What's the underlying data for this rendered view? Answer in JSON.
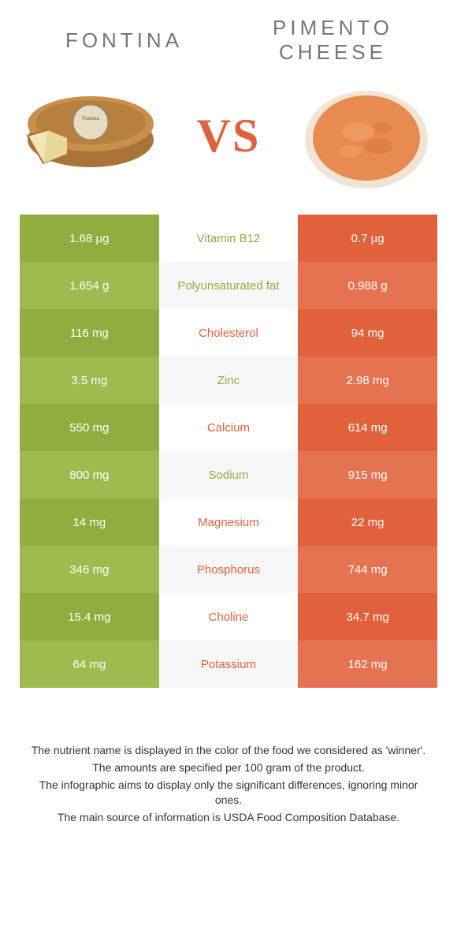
{
  "titles": {
    "left": "FONTINA",
    "right_line1": "PIMENTO",
    "right_line2": "CHEESE",
    "vs": "VS"
  },
  "colors": {
    "green_dark": "#8fae3f",
    "green_light": "#9dbb4e",
    "orange_dark": "#e0613c",
    "orange_light": "#e57352",
    "mid_bg_a": "#ffffff",
    "mid_bg_b": "#f7f7f7",
    "text_green": "#8fae3f",
    "text_orange": "#e0613c"
  },
  "rows": [
    {
      "left": "1.68 µg",
      "nutrient": "Vitamin B12",
      "right": "0.7 µg",
      "winner": "left"
    },
    {
      "left": "1.654 g",
      "nutrient": "Polyunsaturated fat",
      "right": "0.988 g",
      "winner": "left"
    },
    {
      "left": "116 mg",
      "nutrient": "Cholesterol",
      "right": "94 mg",
      "winner": "right"
    },
    {
      "left": "3.5 mg",
      "nutrient": "Zinc",
      "right": "2.98 mg",
      "winner": "left"
    },
    {
      "left": "550 mg",
      "nutrient": "Calcium",
      "right": "614 mg",
      "winner": "right"
    },
    {
      "left": "800 mg",
      "nutrient": "Sodium",
      "right": "915 mg",
      "winner": "left"
    },
    {
      "left": "14 mg",
      "nutrient": "Magnesium",
      "right": "22 mg",
      "winner": "right"
    },
    {
      "left": "346 mg",
      "nutrient": "Phosphorus",
      "right": "744 mg",
      "winner": "right"
    },
    {
      "left": "15.4 mg",
      "nutrient": "Choline",
      "right": "34.7 mg",
      "winner": "right"
    },
    {
      "left": "64 mg",
      "nutrient": "Potassium",
      "right": "162 mg",
      "winner": "right"
    }
  ],
  "footer": [
    "The nutrient name is displayed in the color of the food we considered as 'winner'.",
    "The amounts are specified per 100 gram of the product.",
    "The infographic aims to display only the significant differences, ignoring minor ones.",
    "The main source of information is USDA Food Composition Database."
  ]
}
